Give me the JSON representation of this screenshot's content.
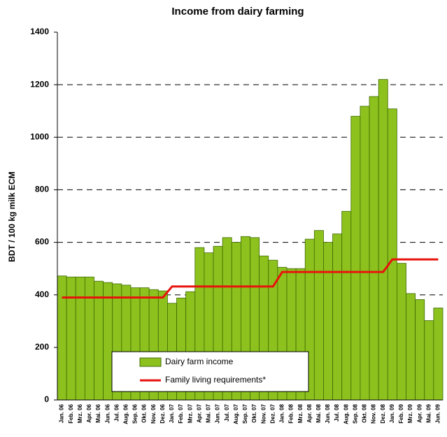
{
  "chart_data": {
    "type": "bar",
    "title": "Income from dairy farming",
    "y_label": "BDT / 100 kg milk ECM",
    "categories": [
      "Jan. 06",
      "Feb. 06",
      "Mrz. 06",
      "Apr. 06",
      "Mai. 06",
      "Jun. 06",
      "Jul. 06",
      "Aug. 06",
      "Sep. 06",
      "Okt. 06",
      "Nov. 06",
      "Dez. 06",
      "Jan. 07",
      "Feb. 07",
      "Mrz. 07",
      "Apr. 07",
      "Mai. 07",
      "Jun. 07",
      "Jul. 07",
      "Aug. 07",
      "Sep. 07",
      "Okt. 07",
      "Nov. 07",
      "Dez. 07",
      "Jan. 08",
      "Feb. 08",
      "Mrz. 08",
      "Apr. 08",
      "Mai. 08",
      "Jun. 08",
      "Jul. 08",
      "Aug. 08",
      "Sep. 08",
      "Okt. 08",
      "Nov. 08",
      "Dez. 08",
      "Jan. 09",
      "Feb. 09",
      "Mrz. 09",
      "Apr. 09",
      "Mai. 09",
      "Jun. 09"
    ],
    "series": [
      {
        "name": "Dairy farm income",
        "type": "bar",
        "color": "#8cc11e",
        "values": [
          472,
          468,
          468,
          468,
          452,
          447,
          442,
          437,
          427,
          427,
          420,
          415,
          368,
          388,
          412,
          580,
          560,
          585,
          618,
          600,
          622,
          618,
          548,
          532,
          505,
          500,
          500,
          612,
          645,
          600,
          632,
          718,
          1080,
          1118,
          1155,
          1220,
          1108,
          520,
          405,
          382,
          302,
          350
        ]
      },
      {
        "name": "Family living requirements*",
        "type": "line",
        "color": "#e8120c",
        "values": [
          390,
          390,
          390,
          390,
          390,
          390,
          390,
          390,
          390,
          390,
          390,
          390,
          432,
          432,
          432,
          432,
          432,
          432,
          432,
          432,
          432,
          432,
          432,
          432,
          487,
          487,
          487,
          487,
          487,
          487,
          487,
          487,
          487,
          487,
          487,
          487,
          535,
          535,
          535,
          535,
          535,
          535
        ]
      }
    ],
    "ylim": [
      0,
      1400
    ],
    "yticks": [
      0,
      200,
      400,
      600,
      800,
      1000,
      1200,
      1400
    ],
    "grid": true
  }
}
